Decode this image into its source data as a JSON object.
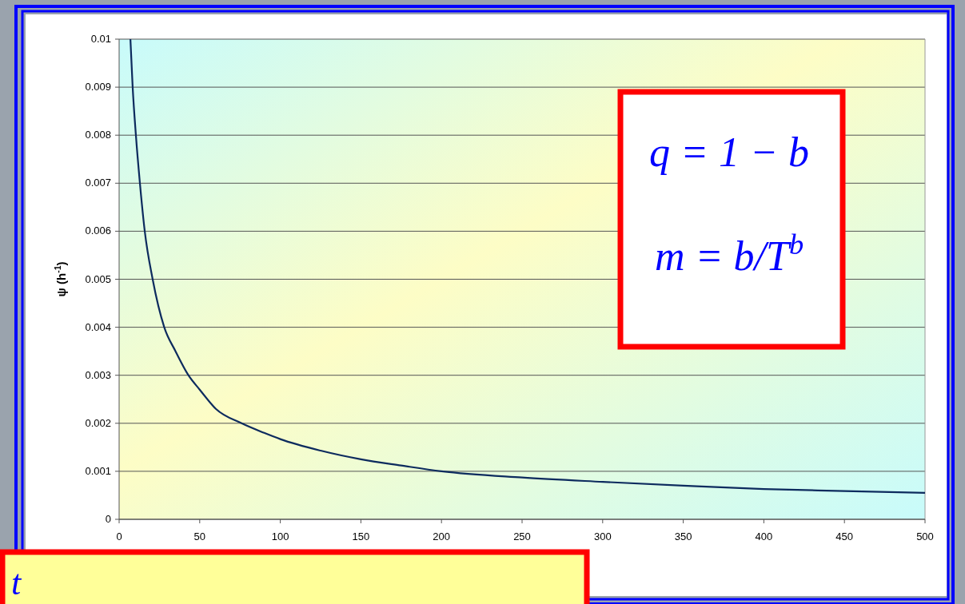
{
  "chart_data": {
    "type": "line",
    "ylabel": "ψ (h$^{-1}$)",
    "x": [
      7,
      8.4,
      10.4,
      12.9,
      15.9,
      20.8,
      28,
      35,
      43,
      50,
      60,
      76,
      90,
      100,
      125,
      150,
      175,
      200,
      250,
      300,
      350,
      400,
      450,
      500
    ],
    "series": [
      {
        "color": "#0d2b5e",
        "values": [
          0.01,
          0.009,
          0.008,
          0.007,
          0.006,
          0.005,
          0.004,
          0.0035,
          0.003,
          0.0027,
          0.0023,
          0.002,
          0.0018,
          0.00167,
          0.00143,
          0.00125,
          0.00112,
          0.001,
          0.00087,
          0.00078,
          0.0007,
          0.00063,
          0.00059,
          0.00055
        ]
      }
    ],
    "xlim": [
      0,
      500
    ],
    "xticks": [
      0,
      50,
      100,
      150,
      200,
      250,
      300,
      350,
      400,
      450,
      500
    ],
    "ylim": [
      0,
      0.01
    ],
    "yticks": [
      0,
      0.001,
      0.002,
      0.003,
      0.004,
      0.005,
      0.006,
      0.007,
      0.008,
      0.009,
      0.01
    ],
    "grid": "y",
    "marker": "none",
    "line_style": "solid",
    "annotations": [
      "q = 1 − b",
      "m = b/T$^{b}$",
      "t"
    ]
  }
}
